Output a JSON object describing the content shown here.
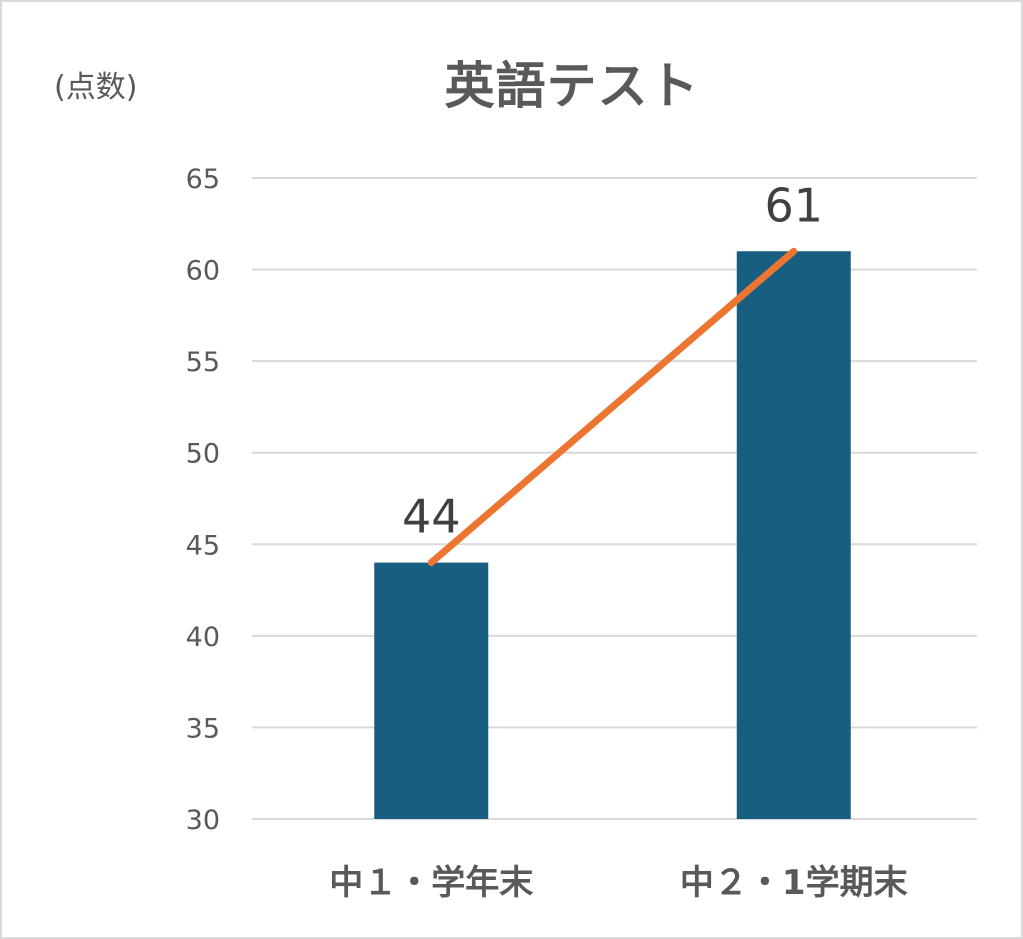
{
  "chart_data": {
    "type": "bar",
    "title": "英語テスト",
    "ylabel": "(点数)",
    "xlabel": "",
    "categories": [
      "中１・学年末",
      "中２・1学期末"
    ],
    "values": [
      44,
      61
    ],
    "data_labels": [
      "44",
      "61"
    ],
    "ylim": [
      30,
      65
    ],
    "yticks": [
      30,
      35,
      40,
      45,
      50,
      55,
      60,
      65
    ],
    "grid": true,
    "legend": "none",
    "overlay_line": true,
    "colors": {
      "bar": "#175e80",
      "line": "#ed7532",
      "grid": "#d9d9d9",
      "text": "#595959",
      "label": "#404040"
    }
  }
}
